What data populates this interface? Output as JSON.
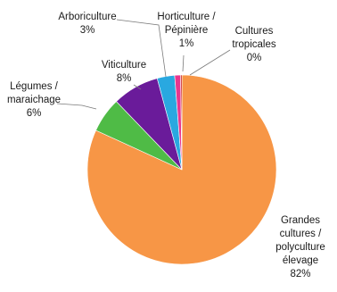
{
  "chart_data": {
    "type": "pie",
    "slices": [
      {
        "name": "Grandes cultures / polyculture élevage",
        "label_lines": [
          "Grandes",
          "cultures /",
          "polyculture",
          "élevage"
        ],
        "value_label": "82%",
        "value": 82,
        "color": "#f79646"
      },
      {
        "name": "Légumes / maraichage",
        "label_lines": [
          "Légumes /",
          "maraichage"
        ],
        "value_label": "6%",
        "value": 6,
        "color": "#4fbb46"
      },
      {
        "name": "Viticulture",
        "label_lines": [
          "Viticulture"
        ],
        "value_label": "8%",
        "value": 8,
        "color": "#6a1b9a"
      },
      {
        "name": "Arboriculture",
        "label_lines": [
          "Arboriculture"
        ],
        "value_label": "3%",
        "value": 3,
        "color": "#29a8e0"
      },
      {
        "name": "Horticulture / Pépinière",
        "label_lines": [
          "Horticulture /",
          "Pépinière"
        ],
        "value_label": "1%",
        "value": 1,
        "color": "#e8368f"
      },
      {
        "name": "Cultures tropicales",
        "label_lines": [
          "Cultures",
          "tropicales"
        ],
        "value_label": "0%",
        "value": 0,
        "color": "#c00000"
      }
    ]
  }
}
